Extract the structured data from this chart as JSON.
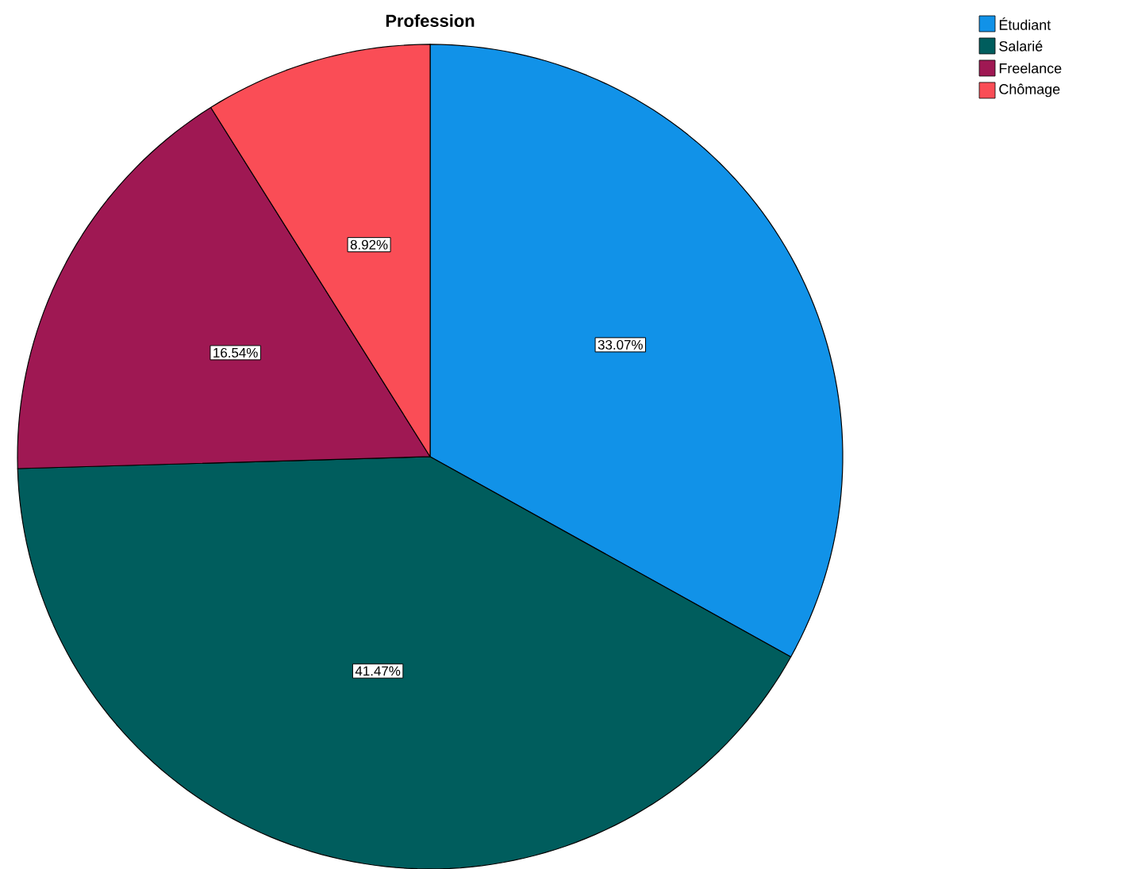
{
  "chart_data": {
    "type": "pie",
    "title": "Profession",
    "categories": [
      "Étudiant",
      "Salarié",
      "Freelance",
      "Chômage"
    ],
    "values": [
      33.07,
      41.47,
      16.54,
      8.92
    ],
    "colors": [
      "#1192e8",
      "#005d5d",
      "#9f1853",
      "#fa4d56"
    ],
    "value_labels": [
      "33.07%",
      "41.47%",
      "16.54%",
      "8.92%"
    ],
    "legend": "top right"
  }
}
